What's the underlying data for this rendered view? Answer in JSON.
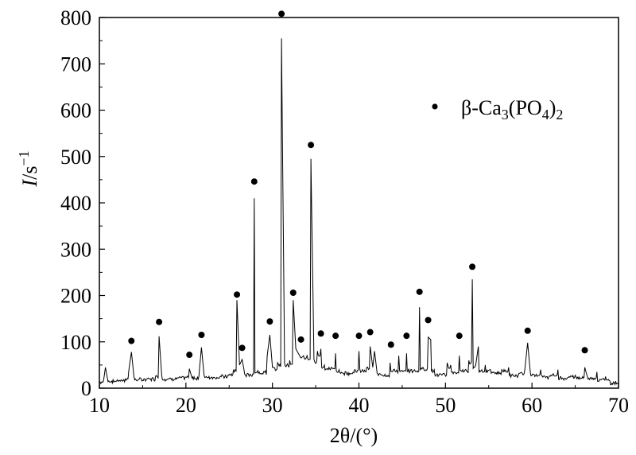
{
  "chart_data": {
    "type": "line",
    "title": "",
    "xlabel": "2θ/(°)",
    "ylabel": {
      "main": "I",
      "rest": "/s",
      "sup": "−1"
    },
    "xlim": [
      10,
      70
    ],
    "ylim": [
      0,
      800
    ],
    "xticks": [
      10,
      20,
      30,
      40,
      50,
      60,
      70
    ],
    "yticks": [
      0,
      100,
      200,
      300,
      400,
      500,
      600,
      700,
      800
    ],
    "grid": false,
    "legend_position": "top-right",
    "legend": {
      "marker": "•",
      "prefix": "β-Ca",
      "sub1": "3",
      "mid": "(PO",
      "sub2": "4",
      "suffix": ")",
      "sub3": "2"
    },
    "series": [
      {
        "type": "line",
        "values": [
          [
            10.0,
            12
          ],
          [
            10.5,
            18
          ],
          [
            10.7,
            45
          ],
          [
            11.0,
            14
          ],
          [
            12.0,
            16
          ],
          [
            13.0,
            20
          ],
          [
            13.4,
            38
          ],
          [
            13.7,
            78
          ],
          [
            14.0,
            25
          ],
          [
            14.5,
            18
          ],
          [
            15.5,
            20
          ],
          [
            16.5,
            26
          ],
          [
            16.9,
            112
          ],
          [
            17.2,
            28
          ],
          [
            18.0,
            20
          ],
          [
            19.0,
            22
          ],
          [
            20.0,
            24
          ],
          [
            20.4,
            42
          ],
          [
            20.7,
            22
          ],
          [
            21.5,
            26
          ],
          [
            21.8,
            88
          ],
          [
            22.1,
            28
          ],
          [
            23.0,
            24
          ],
          [
            24.0,
            26
          ],
          [
            25.0,
            30
          ],
          [
            25.5,
            40
          ],
          [
            25.9,
            190
          ],
          [
            26.2,
            50
          ],
          [
            26.5,
            62
          ],
          [
            26.8,
            30
          ],
          [
            27.4,
            30
          ],
          [
            27.9,
            410
          ],
          [
            28.3,
            38
          ],
          [
            29.0,
            36
          ],
          [
            29.4,
            70
          ],
          [
            29.7,
            115
          ],
          [
            30.0,
            45
          ],
          [
            30.6,
            55
          ],
          [
            31.05,
            755
          ],
          [
            31.4,
            55
          ],
          [
            32.0,
            60
          ],
          [
            32.4,
            190
          ],
          [
            32.7,
            85
          ],
          [
            33.0,
            75
          ],
          [
            33.3,
            65
          ],
          [
            33.6,
            70
          ],
          [
            34.0,
            70
          ],
          [
            34.45,
            495
          ],
          [
            34.8,
            62
          ],
          [
            35.2,
            80
          ],
          [
            35.6,
            85
          ],
          [
            36.0,
            50
          ],
          [
            36.8,
            45
          ],
          [
            37.3,
            75
          ],
          [
            37.7,
            40
          ],
          [
            38.5,
            35
          ],
          [
            39.5,
            40
          ],
          [
            40.0,
            80
          ],
          [
            40.4,
            40
          ],
          [
            40.9,
            45
          ],
          [
            41.3,
            90
          ],
          [
            41.6,
            45
          ],
          [
            41.8,
            80
          ],
          [
            42.1,
            32
          ],
          [
            43.0,
            30
          ],
          [
            43.6,
            55
          ],
          [
            44.0,
            40
          ],
          [
            44.6,
            70
          ],
          [
            45.0,
            38
          ],
          [
            45.5,
            75
          ],
          [
            46.0,
            40
          ],
          [
            47.0,
            175
          ],
          [
            47.4,
            45
          ],
          [
            48.0,
            110
          ],
          [
            48.3,
            105
          ],
          [
            48.7,
            40
          ],
          [
            49.5,
            30
          ],
          [
            50.2,
            55
          ],
          [
            50.6,
            50
          ],
          [
            51.0,
            35
          ],
          [
            51.6,
            70
          ],
          [
            52.0,
            40
          ],
          [
            52.7,
            60
          ],
          [
            53.1,
            235
          ],
          [
            53.5,
            50
          ],
          [
            53.8,
            90
          ],
          [
            54.2,
            40
          ],
          [
            54.6,
            50
          ],
          [
            55.2,
            40
          ],
          [
            56.0,
            35
          ],
          [
            56.5,
            40
          ],
          [
            57.3,
            45
          ],
          [
            57.8,
            28
          ],
          [
            58.5,
            32
          ],
          [
            59.2,
            45
          ],
          [
            59.5,
            98
          ],
          [
            59.8,
            35
          ],
          [
            60.5,
            30
          ],
          [
            61.0,
            40
          ],
          [
            61.5,
            25
          ],
          [
            62.2,
            28
          ],
          [
            63.0,
            40
          ],
          [
            63.5,
            22
          ],
          [
            64.3,
            25
          ],
          [
            65.0,
            28
          ],
          [
            65.6,
            22
          ],
          [
            66.1,
            45
          ],
          [
            66.4,
            25
          ],
          [
            67.0,
            22
          ],
          [
            67.5,
            35
          ],
          [
            68.0,
            18
          ],
          [
            68.5,
            25
          ],
          [
            69.0,
            16
          ],
          [
            70.0,
            10
          ]
        ]
      }
    ],
    "peak_markers": [
      [
        13.7,
        102
      ],
      [
        16.9,
        143
      ],
      [
        20.4,
        72
      ],
      [
        21.8,
        115
      ],
      [
        25.9,
        202
      ],
      [
        26.5,
        87
      ],
      [
        27.9,
        446
      ],
      [
        29.7,
        144
      ],
      [
        31.05,
        808
      ],
      [
        32.4,
        206
      ],
      [
        33.3,
        105
      ],
      [
        34.45,
        525
      ],
      [
        35.6,
        118
      ],
      [
        37.3,
        113
      ],
      [
        40.0,
        113
      ],
      [
        41.3,
        121
      ],
      [
        43.7,
        94
      ],
      [
        45.5,
        113
      ],
      [
        47.0,
        208
      ],
      [
        48.0,
        147
      ],
      [
        51.6,
        113
      ],
      [
        53.1,
        262
      ],
      [
        59.5,
        124
      ],
      [
        66.1,
        82
      ]
    ]
  }
}
